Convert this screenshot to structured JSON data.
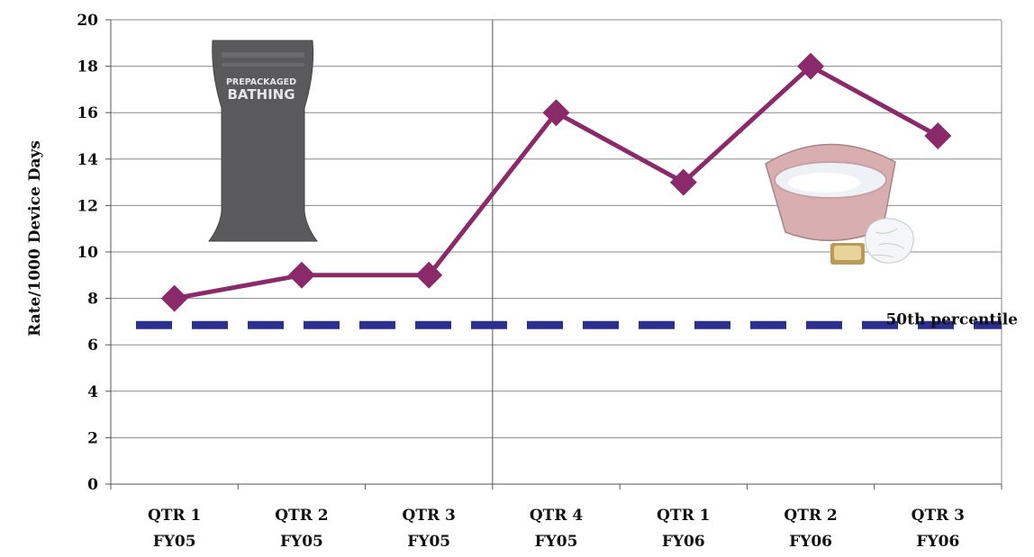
{
  "chart_data": {
    "type": "line",
    "ylabel": "Rate/1000  Device  Days",
    "xlabel": "",
    "ylim": [
      0,
      20
    ],
    "yticks": [
      0,
      2,
      4,
      6,
      8,
      10,
      12,
      14,
      16,
      18,
      20
    ],
    "grid": "horizontal",
    "categories": [
      [
        "QTR 1",
        "FY05"
      ],
      [
        "QTR 2",
        "FY05"
      ],
      [
        "QTR 3",
        "FY05"
      ],
      [
        "QTR 4",
        "FY05"
      ],
      [
        "QTR 1",
        "FY06"
      ],
      [
        "QTR 2",
        "FY06"
      ],
      [
        "QTR 3",
        "FY06"
      ]
    ],
    "series": [
      {
        "values": [
          8,
          9,
          9,
          16,
          13,
          18,
          15
        ],
        "color": "#8b2a6a",
        "marker": "diamond"
      }
    ],
    "reference_line": {
      "value": 6.85,
      "label": "50th  percentile",
      "color": "#2d2f8f",
      "style": "dashed"
    },
    "divider_after_category": 3,
    "images": [
      {
        "name": "prepackaged-bathing-pack-image",
        "text": [
          "PREPACKAGED",
          "BATHING"
        ]
      },
      {
        "name": "wash-basin-image"
      }
    ]
  }
}
